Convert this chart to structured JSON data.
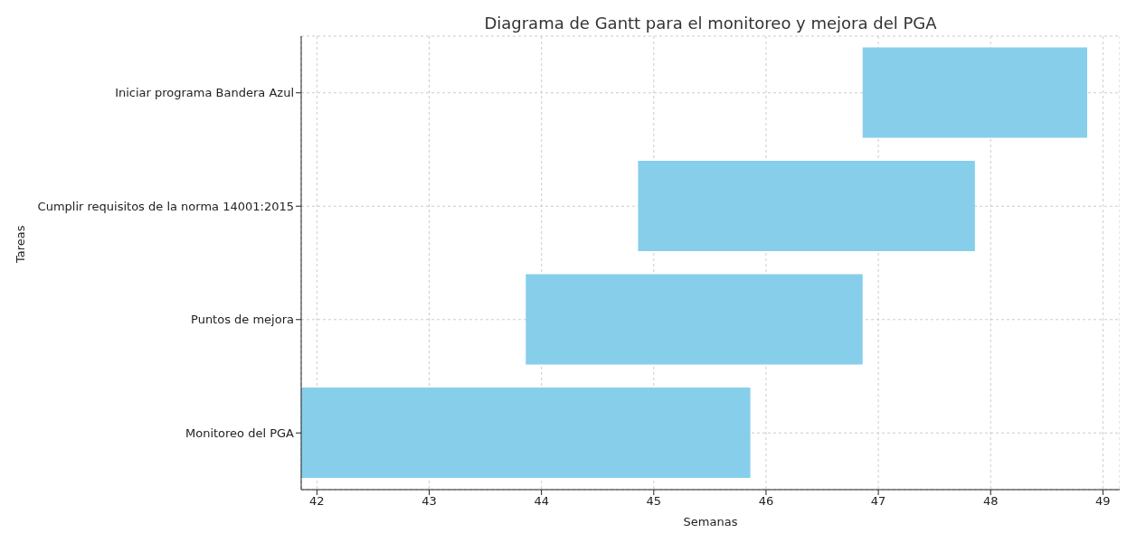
{
  "chart_data": {
    "type": "bar",
    "orientation": "horizontal",
    "title": "Diagrama de Gantt para el monitoreo y mejora del PGA",
    "xlabel": "Semanas",
    "ylabel": "Tareas",
    "categories": [
      "Iniciar programa Bandera Azul",
      "Cumplir requisitos de la norma 14001:2015",
      "Puntos de mejora",
      "Monitoreo del PGA"
    ],
    "base": [
      46.86,
      44.86,
      43.86,
      41.86
    ],
    "values": [
      2,
      3,
      3,
      4
    ],
    "color": "#87ceeb",
    "xlim": [
      41.86,
      49.15
    ],
    "xticks": [
      42,
      43,
      44,
      45,
      46,
      47,
      48,
      49
    ],
    "grid": true
  }
}
